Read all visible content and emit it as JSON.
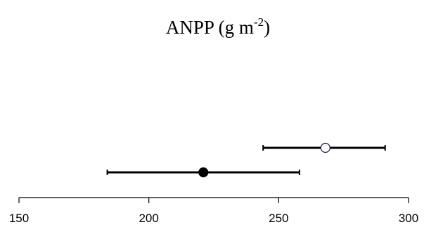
{
  "chart_data": {
    "type": "scatter",
    "title": {
      "main": "ANPP (g m",
      "superscript": "-2",
      "closing": ")"
    },
    "xlim": [
      150,
      300
    ],
    "xticks": [
      150,
      200,
      250,
      300
    ],
    "xtick_labels": [
      "150",
      "200",
      "250",
      "300"
    ],
    "grid": false,
    "series": [
      {
        "marker": "open-circle",
        "marker_edge_color": "#1a1a66",
        "marker_fill_color": "#ffffff",
        "x": 268,
        "x_error_low": 244,
        "x_error_high": 291
      },
      {
        "marker": "filled-circle",
        "marker_edge_color": "#000000",
        "marker_fill_color": "#000000",
        "x": 221,
        "x_error_low": 184,
        "x_error_high": 258
      }
    ]
  }
}
